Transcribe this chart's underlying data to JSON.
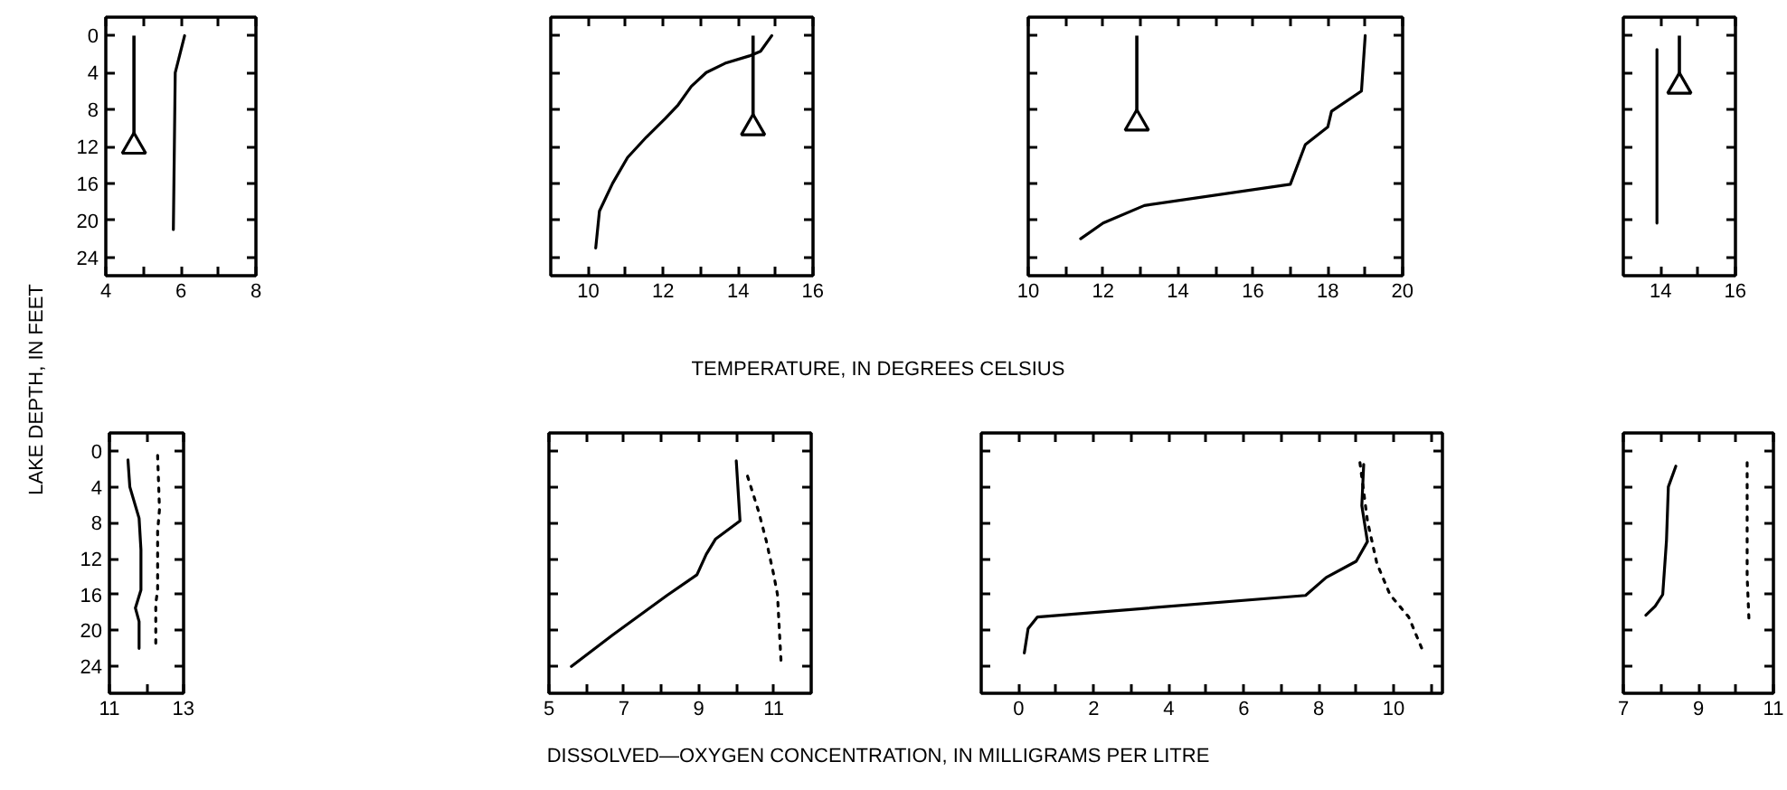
{
  "chart_data": [
    {
      "type": "line",
      "xlim": [
        4,
        8
      ],
      "xticks": [
        4,
        {
          "value": 5,
          "label": null
        },
        6,
        {
          "value": 7,
          "label": null
        },
        8
      ],
      "ylim": [
        26,
        -2
      ],
      "yticks": [
        0,
        4,
        8,
        12,
        16,
        20,
        24
      ],
      "ylabel": "LAKE DEPTH, IN FEET",
      "annotations": [
        "TEMPERATURE, IN DEGREES CELSIUS"
      ],
      "series": [
        {
          "color": "#000000",
          "x": [
            6.1,
            5.85,
            5.8
          ],
          "values": [
            0,
            4,
            21
          ]
        },
        {
          "type": "lollipop",
          "color": "#000000",
          "marker": "triangle",
          "x": [
            4.75
          ],
          "values": [
            12
          ]
        }
      ]
    },
    {
      "type": "line",
      "xlim": [
        9,
        16
      ],
      "xticks": [
        10,
        {
          "value": 11,
          "label": null
        },
        12,
        {
          "value": 13,
          "label": null
        },
        14,
        {
          "value": 15,
          "label": null
        },
        16
      ],
      "ylim": [
        26,
        -2
      ],
      "yticks": [
        0,
        4,
        8,
        12,
        16,
        20,
        24
      ],
      "tick_labels": "x",
      "series": [
        {
          "color": "#000000",
          "x": [
            10.2,
            10.3,
            10.65,
            11.05,
            11.55,
            12.05,
            12.4,
            12.75,
            13.15,
            13.65,
            14.3,
            14.6,
            14.9
          ],
          "values": [
            23,
            19,
            16,
            13.2,
            11,
            9,
            7.5,
            5.5,
            4,
            3,
            2.2,
            1.7,
            0
          ]
        },
        {
          "type": "lollipop",
          "color": "#000000",
          "marker": "triangle",
          "x": [
            14.4
          ],
          "values": [
            10
          ]
        }
      ]
    },
    {
      "type": "line",
      "xlim": [
        10,
        20
      ],
      "xticks": [
        10,
        {
          "value": 11,
          "label": null
        },
        12,
        {
          "value": 13,
          "label": null
        },
        14,
        {
          "value": 15,
          "label": null
        },
        16,
        {
          "value": 17,
          "label": null
        },
        18,
        {
          "value": 19,
          "label": null
        },
        20
      ],
      "ylim": [
        26,
        -2
      ],
      "yticks": [
        0,
        4,
        8,
        12,
        16,
        20,
        24
      ],
      "tick_labels": "x",
      "series": [
        {
          "color": "#000000",
          "x": [
            11.4,
            12.0,
            13.1,
            17.0,
            17.4,
            18.0,
            18.1,
            18.9,
            19.0
          ],
          "values": [
            22,
            20.3,
            18.4,
            16.1,
            11.8,
            9.9,
            8.2,
            6,
            0
          ]
        },
        {
          "type": "lollipop",
          "color": "#000000",
          "marker": "triangle",
          "x": [
            12.9
          ],
          "values": [
            9.5
          ]
        }
      ]
    },
    {
      "type": "line",
      "xlim": [
        13,
        16
      ],
      "xticks": [
        14,
        {
          "value": 15,
          "label": null
        },
        16
      ],
      "ylim": [
        26,
        -2
      ],
      "yticks": [
        0,
        4,
        8,
        12,
        16,
        20,
        24
      ],
      "tick_labels": "x",
      "series": [
        {
          "color": "#000000",
          "x": [
            13.9,
            13.9
          ],
          "values": [
            1.5,
            20.3
          ]
        },
        {
          "type": "lollipop",
          "color": "#000000",
          "marker": "triangle",
          "x": [
            14.5
          ],
          "values": [
            5.5
          ]
        }
      ]
    },
    {
      "type": "line",
      "xlim": [
        11,
        13
      ],
      "xticks": [
        11,
        {
          "value": 12,
          "label": null
        },
        13
      ],
      "ylim": [
        27,
        -2
      ],
      "yticks": [
        0,
        4,
        8,
        12,
        16,
        20,
        24
      ],
      "annotations": [
        "DISSOLVED—OXYGEN CONCENTRATION, IN MILLIGRAMS PER LITRE"
      ],
      "series": [
        {
          "color": "#000000",
          "x": [
            11.5,
            11.55,
            11.8,
            11.85,
            11.85,
            11.7,
            11.8,
            11.8
          ],
          "values": [
            1,
            4,
            7.5,
            11,
            15.5,
            17.5,
            19,
            22
          ]
        },
        {
          "color": "#000000",
          "line_style": "dotted",
          "x": [
            12.3,
            12.35,
            12.3,
            12.3,
            12.25,
            12.25
          ],
          "values": [
            0.5,
            6.5,
            9,
            15.5,
            17,
            21.5
          ]
        }
      ]
    },
    {
      "type": "line",
      "xlim": [
        5,
        12
      ],
      "xticks": [
        5,
        {
          "value": 6,
          "label": null
        },
        7,
        {
          "value": 8,
          "label": null
        },
        9,
        {
          "value": 10,
          "label": null
        },
        11
      ],
      "ylim": [
        27,
        -2
      ],
      "yticks": [
        0,
        4,
        8,
        12,
        16,
        20,
        24
      ],
      "tick_labels": "x",
      "series": [
        {
          "color": "#000000",
          "x": [
            5.6,
            6.7,
            8.15,
            8.95,
            9.2,
            9.45,
            10.1,
            10.0
          ],
          "values": [
            24,
            20.5,
            16.1,
            13.8,
            11.5,
            9.8,
            7.8,
            1.1
          ]
        },
        {
          "color": "#000000",
          "line_style": "dotted",
          "x": [
            10.3,
            10.6,
            10.8,
            11.0,
            11.1,
            11.15,
            11.2
          ],
          "values": [
            2.8,
            6.8,
            10,
            13.8,
            16,
            20,
            23.8
          ]
        }
      ]
    },
    {
      "type": "line",
      "xlim": [
        -1,
        11.3
      ],
      "xticks": [
        0,
        {
          "value": 1,
          "label": null
        },
        2,
        {
          "value": 3,
          "label": null
        },
        4,
        {
          "value": 5,
          "label": null
        },
        6,
        {
          "value": 7,
          "label": null
        },
        8,
        {
          "value": 9,
          "label": null
        },
        10,
        {
          "value": 11,
          "label": null
        }
      ],
      "ylim": [
        27,
        -2
      ],
      "yticks": [
        0,
        4,
        8,
        12,
        16,
        20,
        24
      ],
      "tick_labels": "x",
      "series": [
        {
          "color": "#000000",
          "x": [
            0.15,
            0.25,
            0.5,
            7.65,
            8.2,
            9.0,
            9.3,
            9.15,
            9.2
          ],
          "values": [
            22.5,
            19.8,
            18.5,
            16.1,
            14.1,
            12.3,
            10.1,
            6.1,
            1.5
          ]
        },
        {
          "color": "#000000",
          "line_style": "dotted",
          "x": [
            9.1,
            9.3,
            9.55,
            9.9,
            10.4,
            10.75
          ],
          "values": [
            1.3,
            7.8,
            12.5,
            16,
            18.5,
            22
          ]
        }
      ]
    },
    {
      "type": "line",
      "xlim": [
        7,
        11
      ],
      "xticks": [
        7,
        {
          "value": 8,
          "label": null
        },
        9,
        {
          "value": 10,
          "label": null
        },
        11
      ],
      "ylim": [
        27,
        -2
      ],
      "yticks": [
        0,
        4,
        8,
        12,
        16,
        20,
        24
      ],
      "tick_labels": "x",
      "series": [
        {
          "color": "#000000",
          "x": [
            8.4,
            8.2,
            8.15,
            8.05,
            7.85,
            7.6
          ],
          "values": [
            1.7,
            4,
            10,
            16,
            17.3,
            18.3
          ]
        },
        {
          "color": "#000000",
          "line_style": "dotted",
          "x": [
            10.3,
            10.3,
            10.35
          ],
          "values": [
            1.3,
            14,
            19
          ]
        }
      ]
    }
  ]
}
